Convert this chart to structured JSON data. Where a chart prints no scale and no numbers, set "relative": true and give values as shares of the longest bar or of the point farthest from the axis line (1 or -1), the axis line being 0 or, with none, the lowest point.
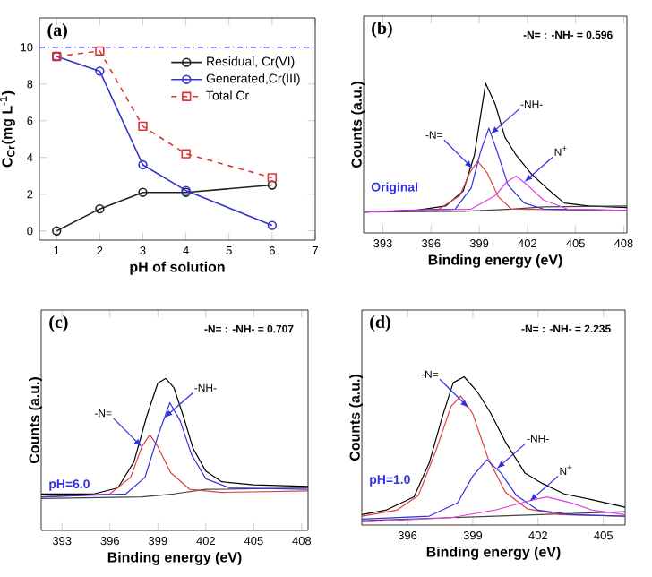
{
  "chart_data": [
    {
      "type": "line",
      "title": "(a)",
      "xlabel": "pH of solution",
      "ylabel": "C$_{Cr}$(mg L$^{-1}$)",
      "x": [
        1,
        2,
        3,
        4,
        6
      ],
      "xlim": [
        0.6,
        7
      ],
      "ylim": [
        -0.5,
        11.6
      ],
      "xticks": [
        1,
        2,
        3,
        4,
        5,
        6,
        7
      ],
      "yticks": [
        0,
        2,
        4,
        6,
        8,
        10
      ],
      "legend": "top right",
      "series": [
        {
          "name": "Residual, Cr(VI)",
          "color": "#222222",
          "marker": "circle",
          "line_style": "solid",
          "values": [
            0,
            1.2,
            2.1,
            2.1,
            2.5
          ]
        },
        {
          "name": "Generated,Cr(III)",
          "color": "#3333cc",
          "marker": "circle",
          "line_style": "solid",
          "values": [
            9.5,
            8.7,
            3.6,
            2.2,
            0.3
          ]
        },
        {
          "name": "Total Cr",
          "color": "#e03030",
          "marker": "square",
          "line_style": "dashed",
          "values": [
            9.5,
            9.8,
            5.7,
            4.2,
            2.9
          ]
        }
      ],
      "ref_lines": [
        {
          "axis": "y",
          "value": 10,
          "color": "#3333cc",
          "line_style": "dashdot"
        }
      ]
    },
    {
      "type": "line",
      "relative": true,
      "title": "(b)",
      "xlabel": "Binding energy (eV)",
      "ylabel": "Counts (a.u.)",
      "xlim": [
        391.8,
        408.2
      ],
      "xticks": [
        393,
        396,
        399,
        402,
        405,
        408
      ],
      "tick_labels": "x",
      "series": [
        {
          "color": "#000000",
          "x": [
            391.8,
            395.0,
            396.9,
            398.0,
            398.7,
            399.4,
            400.0,
            400.6,
            401.3,
            402.2,
            403.2,
            404.3,
            405.8,
            408.2
          ],
          "values": [
            0.14,
            0.15,
            0.18,
            0.28,
            0.52,
            1.0,
            0.86,
            0.64,
            0.52,
            0.4,
            0.3,
            0.2,
            0.18,
            0.17
          ]
        },
        {
          "color": "#444444",
          "x": [
            391.8,
            398.0,
            401.0,
            403.0,
            408.2
          ],
          "values": [
            0.14,
            0.145,
            0.16,
            0.175,
            0.18
          ]
        },
        {
          "color": "#e04040",
          "x": [
            391.8,
            396.5,
            397.8,
            398.4,
            398.9,
            399.5,
            400.2,
            401.0,
            408.2
          ],
          "values": [
            0.14,
            0.16,
            0.25,
            0.4,
            0.48,
            0.4,
            0.24,
            0.16,
            0.15
          ]
        },
        {
          "color": "#3030e0",
          "x": [
            391.8,
            397.5,
            398.5,
            399.1,
            399.6,
            400.1,
            400.8,
            401.8,
            403.0,
            408.2
          ],
          "values": [
            0.14,
            0.16,
            0.3,
            0.55,
            0.7,
            0.55,
            0.32,
            0.2,
            0.16,
            0.15
          ]
        },
        {
          "color": "#e040e0",
          "x": [
            391.8,
            398.5,
            400.0,
            400.7,
            401.3,
            402.0,
            403.0,
            404.5,
            408.2
          ],
          "values": [
            0.14,
            0.16,
            0.25,
            0.34,
            0.38,
            0.32,
            0.22,
            0.16,
            0.15
          ]
        }
      ],
      "annotations": [
        "-N= : -NH- = 0.596",
        "Original",
        {
          "text": "-N=",
          "x": 398.6,
          "y": 0.43
        },
        {
          "text": "-NH-",
          "x": 399.7,
          "y": 0.66
        },
        {
          "text": "N$^{+}$",
          "x": 401.8,
          "y": 0.34
        }
      ]
    },
    {
      "type": "line",
      "relative": true,
      "title": "(c)",
      "xlabel": "Binding energy (eV)",
      "ylabel": "Counts (a.u.)",
      "xlim": [
        391.7,
        408.4
      ],
      "xticks": [
        393,
        396,
        399,
        402,
        405,
        408
      ],
      "tick_labels": "x",
      "series": [
        {
          "color": "#000000",
          "x": [
            391.7,
            395.0,
            396.5,
            397.5,
            398.3,
            399.0,
            399.5,
            400.0,
            400.6,
            401.2,
            402.0,
            403.0,
            405.0,
            408.4
          ],
          "values": [
            0.24,
            0.24,
            0.28,
            0.45,
            0.75,
            0.97,
            1.0,
            0.94,
            0.75,
            0.54,
            0.39,
            0.32,
            0.3,
            0.29
          ]
        },
        {
          "color": "#444444",
          "x": [
            391.7,
            398.0,
            400.0,
            402.0,
            408.4
          ],
          "values": [
            0.21,
            0.22,
            0.24,
            0.27,
            0.28
          ]
        },
        {
          "color": "#e04040",
          "x": [
            391.7,
            396.0,
            397.3,
            398.0,
            398.5,
            399.0,
            399.8,
            401.0,
            403.0,
            408.4
          ],
          "values": [
            0.22,
            0.24,
            0.35,
            0.55,
            0.63,
            0.55,
            0.38,
            0.27,
            0.25,
            0.26
          ]
        },
        {
          "color": "#3030e0",
          "x": [
            391.7,
            397.0,
            398.2,
            399.0,
            399.75,
            400.4,
            401.1,
            402.0,
            403.5,
            408.4
          ],
          "values": [
            0.22,
            0.24,
            0.35,
            0.62,
            0.84,
            0.72,
            0.5,
            0.34,
            0.28,
            0.27
          ]
        }
      ],
      "annotations": [
        "-N= : -NH- = 0.707",
        "pH=6.0",
        {
          "text": "-N=",
          "x": 398.0,
          "y": 0.55
        },
        {
          "text": "-NH-",
          "x": 399.4,
          "y": 0.74
        }
      ]
    },
    {
      "type": "line",
      "relative": true,
      "title": "(d)",
      "xlabel": "Binding energy (eV)",
      "ylabel": "Counts (a.u.)",
      "xlim": [
        393.9,
        406.0
      ],
      "xticks": [
        396,
        399,
        402,
        405
      ],
      "tick_labels": "x",
      "series": [
        {
          "color": "#000000",
          "x": [
            393.9,
            395.0,
            396.3,
            397.0,
            397.6,
            398.1,
            398.6,
            399.2,
            399.8,
            400.5,
            401.4,
            402.2,
            403.2,
            404.5,
            406.0
          ],
          "values": [
            0.07,
            0.1,
            0.19,
            0.42,
            0.73,
            0.96,
            1.0,
            0.9,
            0.76,
            0.56,
            0.35,
            0.28,
            0.21,
            0.17,
            0.12
          ]
        },
        {
          "color": "#444444",
          "x": [
            393.9,
            400.0,
            406.0
          ],
          "values": [
            0.03,
            0.06,
            0.09
          ]
        },
        {
          "color": "#e04040",
          "x": [
            393.9,
            395.5,
            396.5,
            397.3,
            398.0,
            398.45,
            399.0,
            399.7,
            400.5,
            401.5,
            403.0,
            406.0
          ],
          "values": [
            0.06,
            0.1,
            0.2,
            0.5,
            0.8,
            0.87,
            0.75,
            0.45,
            0.22,
            0.11,
            0.07,
            0.06
          ]
        },
        {
          "color": "#3030e0",
          "x": [
            393.9,
            397.0,
            398.3,
            399.0,
            399.65,
            400.3,
            401.0,
            402.0,
            403.5,
            406.0
          ],
          "values": [
            0.04,
            0.06,
            0.15,
            0.33,
            0.44,
            0.35,
            0.2,
            0.1,
            0.07,
            0.06
          ]
        },
        {
          "color": "#e040e0",
          "x": [
            393.9,
            398.0,
            400.0,
            401.5,
            402.4,
            403.5,
            404.5,
            406.0
          ],
          "values": [
            0.02,
            0.05,
            0.1,
            0.16,
            0.19,
            0.15,
            0.1,
            0.07
          ]
        }
      ],
      "annotations": [
        "-N= : -NH- = 2.235",
        "pH=1.0",
        {
          "text": "-N=",
          "x": 398.8,
          "y": 0.79
        },
        {
          "text": "-NH-",
          "x": 400.1,
          "y": 0.38
        },
        {
          "text": "N$^{+}$",
          "x": 401.6,
          "y": 0.16
        }
      ]
    }
  ]
}
